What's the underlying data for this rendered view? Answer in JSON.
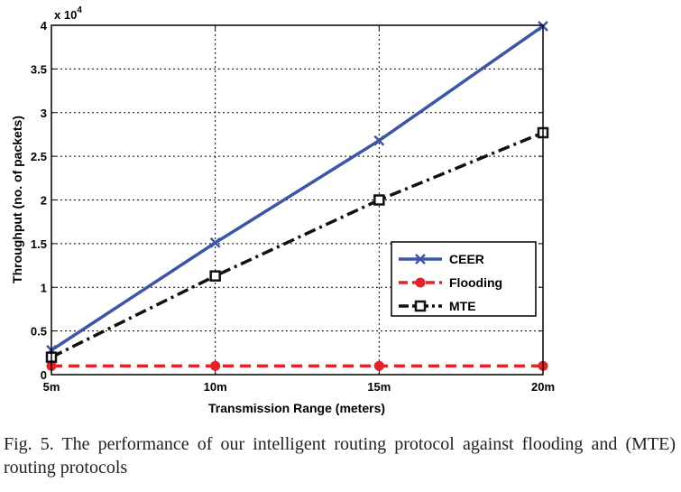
{
  "chart_data": {
    "type": "line",
    "xlabel": "Transmission Range (meters)",
    "ylabel": "Throughput (no. of packets)",
    "y_multiplier_label": "x 10",
    "y_multiplier_exponent": "4",
    "categories": [
      "5m",
      "10m",
      "15m",
      "20m"
    ],
    "x": [
      5,
      10,
      15,
      20
    ],
    "xlim": [
      5,
      20
    ],
    "ylim": [
      0,
      4
    ],
    "yticks": [
      "0",
      "0.5",
      "1",
      "1.5",
      "2",
      "2.5",
      "3",
      "3.5",
      "4"
    ],
    "ytick_values": [
      0,
      0.5,
      1,
      1.5,
      2,
      2.5,
      3,
      3.5,
      4
    ],
    "grid": true,
    "legend_position": "center-right",
    "series": [
      {
        "name": "CEER",
        "values": [
          0.28,
          1.51,
          2.68,
          3.99
        ],
        "color": "#3a56a8",
        "marker": "x-icon",
        "line_style": "solid"
      },
      {
        "name": "Flooding",
        "values": [
          0.1,
          0.1,
          0.1,
          0.1
        ],
        "color": "#e8202a",
        "marker": "circle-icon",
        "line_style": "dashed"
      },
      {
        "name": "MTE",
        "values": [
          0.2,
          1.13,
          2.0,
          2.77
        ],
        "color": "#111111",
        "marker": "square-icon",
        "line_style": "dash-dot"
      }
    ]
  },
  "caption": "Fig. 5.   The performance of our intelligent routing protocol against flooding and (MTE) routing protocols"
}
